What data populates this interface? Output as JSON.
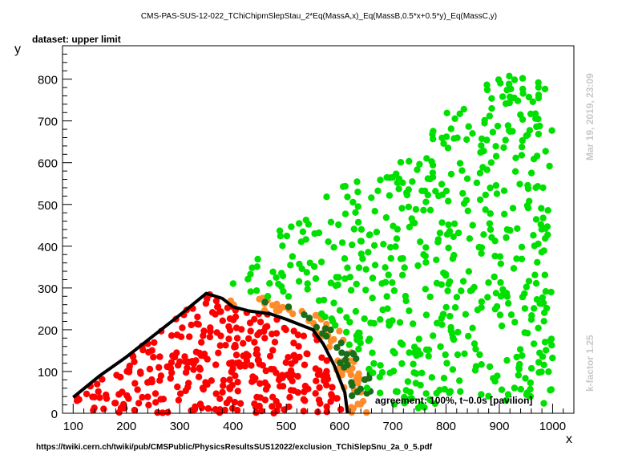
{
  "header": {
    "title": "CMS-PAS-SUS-12-022_TChiChipmSlepStau_2*Eq(MassA,x)_Eq(MassB,0.5*x+0.5*y)_Eq(MassC,y)",
    "dataset": "dataset: upper limit",
    "agreement": "agreement: 100%, t~0.0s [pavilion]",
    "url": "https://twiki.cern.ch/twiki/pub/CMSPublic/PhysicsResultsSUS12022/exclusion_TChiSlepSnu_2a_0_5.pdf",
    "timestamp": "Mar 19, 2019, 23:09",
    "kfactor": "k-factor 1.25"
  },
  "colors": {
    "excluded": "#ff0000",
    "excluded_border": "#ff8c2a",
    "allowed_border": "#1a6e1a",
    "allowed": "#00e000",
    "contour": "#000000"
  },
  "chart_data": {
    "type": "scatter",
    "xlabel": "x",
    "ylabel": "y",
    "xlim": [
      80,
      1040
    ],
    "ylim": [
      0,
      880
    ],
    "xticks": [
      100,
      200,
      300,
      400,
      500,
      600,
      700,
      800,
      900,
      1000
    ],
    "yticks": [
      0,
      100,
      200,
      300,
      400,
      500,
      600,
      700,
      800
    ],
    "legend": "none",
    "grid": false,
    "exclusion_contour": [
      [
        100,
        38
      ],
      [
        150,
        90
      ],
      [
        200,
        135
      ],
      [
        250,
        185
      ],
      [
        300,
        235
      ],
      [
        350,
        287
      ],
      [
        380,
        275
      ],
      [
        400,
        255
      ],
      [
        430,
        245
      ],
      [
        470,
        238
      ],
      [
        500,
        225
      ],
      [
        550,
        200
      ],
      [
        570,
        165
      ],
      [
        590,
        115
      ],
      [
        610,
        50
      ],
      [
        615,
        0
      ]
    ],
    "regions": [
      {
        "class": "excluded",
        "bounds": [
          [
            100,
            38
          ],
          [
            150,
            90
          ],
          [
            200,
            135
          ],
          [
            250,
            185
          ],
          [
            300,
            235
          ],
          [
            350,
            287
          ],
          [
            380,
            275
          ],
          [
            400,
            255
          ],
          [
            430,
            245
          ],
          [
            470,
            238
          ],
          [
            500,
            225
          ],
          [
            550,
            200
          ],
          [
            570,
            165
          ],
          [
            590,
            115
          ],
          [
            610,
            50
          ],
          [
            615,
            0
          ],
          [
            125,
            0
          ]
        ],
        "count": 330
      },
      {
        "class": "excluded_border",
        "bounds": [
          [
            380,
            275
          ],
          [
            400,
            255
          ],
          [
            430,
            245
          ],
          [
            470,
            238
          ],
          [
            500,
            225
          ],
          [
            550,
            200
          ],
          [
            570,
            165
          ],
          [
            590,
            115
          ],
          [
            610,
            50
          ],
          [
            615,
            0
          ],
          [
            655,
            0
          ],
          [
            640,
            100
          ],
          [
            600,
            200
          ],
          [
            560,
            240
          ],
          [
            500,
            270
          ],
          [
            440,
            285
          ]
        ],
        "count": 70
      },
      {
        "class": "allowed_border",
        "bounds": [
          [
            450,
            270
          ],
          [
            500,
            260
          ],
          [
            560,
            230
          ],
          [
            600,
            180
          ],
          [
            640,
            130
          ],
          [
            660,
            90
          ],
          [
            660,
            40
          ],
          [
            620,
            30
          ],
          [
            590,
            150
          ],
          [
            540,
            230
          ]
        ],
        "count": 30
      },
      {
        "class": "allowed",
        "bounds": [
          [
            390,
            300
          ],
          [
            500,
            460
          ],
          [
            600,
            540
          ],
          [
            700,
            600
          ],
          [
            800,
            720
          ],
          [
            900,
            830
          ],
          [
            1000,
            790
          ],
          [
            1000,
            20
          ],
          [
            660,
            10
          ],
          [
            640,
            100
          ],
          [
            600,
            200
          ],
          [
            560,
            240
          ],
          [
            500,
            270
          ],
          [
            440,
            285
          ]
        ],
        "count": 560
      }
    ]
  }
}
